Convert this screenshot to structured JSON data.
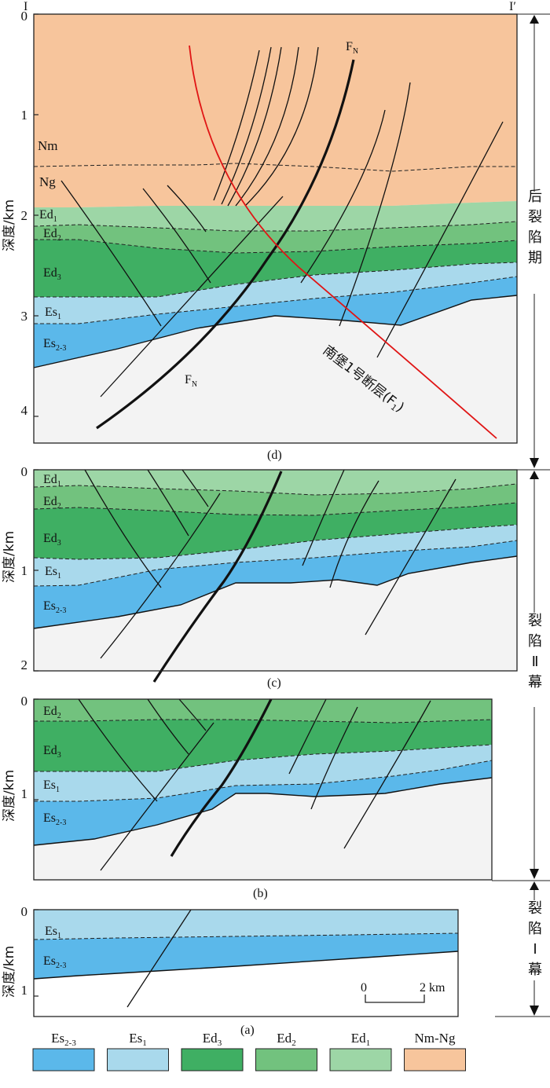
{
  "colors": {
    "nm_ng": "#f7c59c",
    "ed1": "#9dd6a6",
    "ed2": "#72c27e",
    "ed3": "#3faf63",
    "es1": "#a9d9ec",
    "es23": "#5bb8ea",
    "basement": "#f3f3f3",
    "fault_fx": "#e01515"
  },
  "section": {
    "start": "I",
    "end": "I′"
  },
  "axis": {
    "ylabel": "深度/km"
  },
  "panels": [
    {
      "id": "d",
      "caption": "(d)",
      "ticks": [
        "0",
        "1",
        "2",
        "3",
        "4"
      ],
      "layers": [
        "Nm",
        "Ng",
        "Ed1",
        "Ed2",
        "Ed3",
        "Es1",
        "Es2-3"
      ]
    },
    {
      "id": "c",
      "caption": "(c)",
      "ticks": [
        "0",
        "1",
        "2"
      ],
      "layers": [
        "Ed1",
        "Ed2",
        "Ed3",
        "Es1",
        "Es2-3"
      ]
    },
    {
      "id": "b",
      "caption": "(b)",
      "ticks": [
        "0",
        "1"
      ],
      "layers": [
        "Ed2",
        "Ed3",
        "Es1",
        "Es2-3"
      ]
    },
    {
      "id": "a",
      "caption": "(a)",
      "ticks": [
        "0",
        "1"
      ],
      "layers": [
        "Es1",
        "Es2-3"
      ]
    }
  ],
  "fault_labels": {
    "fn": "F",
    "fn_sub": "N",
    "f1": "南堡1号断层(F",
    "f1_sub": "1",
    "f1_close": ")"
  },
  "scale_bar": {
    "start": "0",
    "end": "2 km"
  },
  "stages": [
    {
      "id": "post",
      "label": "后裂陷期"
    },
    {
      "id": "rift2",
      "label": "裂陷Ⅱ幕"
    },
    {
      "id": "rift1",
      "label": "裂陷Ⅰ幕"
    }
  ],
  "legend": [
    {
      "base": "Es",
      "sub": "2-3",
      "color_key": "es23"
    },
    {
      "base": "Es",
      "sub": "1",
      "color_key": "es1"
    },
    {
      "base": "Ed",
      "sub": "3",
      "color_key": "ed3"
    },
    {
      "base": "Ed",
      "sub": "2",
      "color_key": "ed2"
    },
    {
      "base": "Ed",
      "sub": "1",
      "color_key": "ed1"
    },
    {
      "base": "Nm-Ng",
      "sub": "",
      "color_key": "nm_ng"
    }
  ]
}
